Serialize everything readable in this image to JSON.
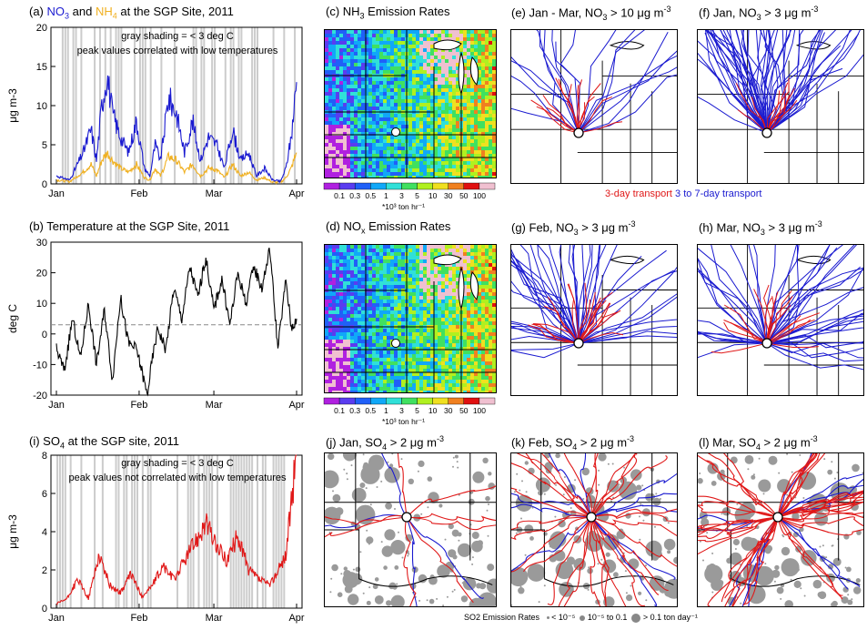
{
  "panels": {
    "a": {
      "title": "(a) NO3 and NH4 at the SGP Site, 2011",
      "title_parts": [
        "(a) ",
        "NO",
        "3",
        "and ",
        "NH",
        "4",
        " at the SGP Site, 2011"
      ],
      "note1": "gray shading = < 3 deg C",
      "note2": "peak values correlated with low temperatures"
    },
    "b": {
      "title": "(b) Temperature at the SGP Site, 2011"
    },
    "i": {
      "title": "(i) SO4 at the SGP site, 2011",
      "title_parts": [
        "(i) SO",
        "4",
        " at the SGP site, 2011"
      ],
      "note1": "gray shading = < 3 deg C",
      "note2": "peak values not correlated with low temperatures"
    },
    "c": {
      "title_parts": [
        "(c) NH",
        "3",
        " Emission Rates"
      ],
      "unit": "*10³ ton hr⁻¹"
    },
    "d": {
      "title_parts": [
        "(d) NO",
        "x",
        " Emission Rates"
      ],
      "unit": "*10³ ton hr⁻¹"
    },
    "e": {
      "title_parts": [
        "(e) Jan - Mar, NO",
        "3",
        " > 10 μg m",
        "-3"
      ]
    },
    "f": {
      "title_parts": [
        "(f) Jan, NO",
        "3",
        " > 3 μg m",
        "-3"
      ]
    },
    "g": {
      "title_parts": [
        "(g) Feb, NO",
        "3",
        " > 3 μg m",
        "-3"
      ]
    },
    "h": {
      "title_parts": [
        "(h) Mar, NO",
        "3",
        " > 3 μg m",
        "-3"
      ]
    },
    "j": {
      "title_parts": [
        "(j) Jan, SO",
        "4",
        " > 2 μg m",
        "-3"
      ]
    },
    "k": {
      "title_parts": [
        "(k) Feb, SO",
        "4",
        " > 2 μg m",
        "-3"
      ]
    },
    "l": {
      "title_parts": [
        "(l) Mar, SO",
        "4",
        " > 2 μg m",
        "-3"
      ]
    }
  },
  "transport_legend": {
    "red": "3-day transport",
    "blue": "3 to 7-day transport"
  },
  "colorbar_ticks": [
    "0.1",
    "0.3",
    "0.5",
    "1",
    "3",
    "5",
    "10",
    "30",
    "50",
    "100"
  ],
  "colorbar_colors": [
    "#b020e0",
    "#5a3cf0",
    "#2060f8",
    "#10a8f8",
    "#30e0d8",
    "#40e060",
    "#b0f020",
    "#f0e020",
    "#f08020",
    "#e01010",
    "#f0c0d0"
  ],
  "so2_legend": {
    "label": "SO2 Emission Rates",
    "items": [
      "< 10⁻⁵",
      "10⁻⁵ to 0.1",
      "> 0.1 ton day⁻¹"
    ]
  },
  "colors": {
    "no3": "#1a1ad0",
    "nh4": "#f0b020",
    "so4": "#e01818",
    "shade": "#cccccc",
    "temp": "#000000"
  },
  "chart_data": [
    {
      "type": "line",
      "title": "(a) NO3 and NH4 at the SGP Site, 2011",
      "xlabel": "",
      "ylabel": "μg m-3",
      "x_ticks": [
        "Jan",
        "Feb",
        "Mar",
        "Apr"
      ],
      "ylim": [
        0,
        20
      ],
      "y_ticks": [
        0,
        5,
        10,
        15,
        20
      ],
      "series": [
        {
          "name": "NO3",
          "x_day": [
            0,
            5,
            10,
            13,
            15,
            17,
            19,
            21,
            24,
            27,
            30,
            33,
            35,
            37,
            39,
            42,
            45,
            48,
            51,
            54,
            57,
            60,
            63,
            66,
            69,
            72,
            75,
            78,
            81,
            84,
            86,
            88,
            90
          ],
          "values": [
            1,
            0.5,
            4,
            7,
            3,
            10,
            14,
            9,
            6,
            4,
            8,
            2,
            1,
            5,
            3,
            11,
            9,
            4,
            8,
            3,
            6,
            5,
            2,
            7,
            3,
            4,
            1,
            2,
            0.5,
            0.3,
            2,
            6,
            13
          ]
        },
        {
          "name": "NH4",
          "x_day": [
            0,
            5,
            10,
            13,
            15,
            17,
            19,
            21,
            24,
            27,
            30,
            33,
            35,
            37,
            39,
            42,
            45,
            48,
            51,
            54,
            57,
            60,
            63,
            66,
            69,
            72,
            75,
            78,
            81,
            84,
            86,
            88,
            90
          ],
          "values": [
            0.5,
            0.3,
            1.5,
            2.5,
            1,
            3,
            4,
            3,
            2,
            1.5,
            2.5,
            0.8,
            0.5,
            2,
            1,
            3.5,
            3,
            1.5,
            2.5,
            1,
            2,
            1.8,
            0.8,
            2.5,
            1,
            1.5,
            0.5,
            0.8,
            0.2,
            0.2,
            0.8,
            2,
            4
          ]
        }
      ],
      "annotations": [
        "gray shading = < 3 deg C",
        "peak values correlated with low temperatures"
      ]
    },
    {
      "type": "line",
      "title": "(b) Temperature at the SGP Site, 2011",
      "xlabel": "",
      "ylabel": "deg C",
      "x_ticks": [
        "Jan",
        "Feb",
        "Mar",
        "Apr"
      ],
      "ylim": [
        -20,
        30
      ],
      "y_ticks": [
        -20,
        -10,
        0,
        10,
        20,
        30
      ],
      "reference_line": 3,
      "series": [
        {
          "name": "Temperature",
          "x_day": [
            0,
            3,
            6,
            9,
            12,
            15,
            18,
            21,
            24,
            27,
            30,
            32,
            34,
            36,
            38,
            41,
            44,
            47,
            50,
            53,
            56,
            59,
            62,
            65,
            68,
            71,
            74,
            77,
            80,
            83,
            86,
            88,
            90
          ],
          "values": [
            -5,
            -12,
            5,
            -8,
            10,
            -10,
            8,
            -15,
            12,
            -3,
            -5,
            -12,
            -20,
            -8,
            2,
            -5,
            15,
            5,
            22,
            12,
            25,
            8,
            18,
            3,
            20,
            10,
            22,
            15,
            28,
            -5,
            18,
            2,
            5
          ]
        }
      ]
    },
    {
      "type": "line",
      "title": "(i) SO4 at the SGP site, 2011",
      "xlabel": "",
      "ylabel": "μg m-3",
      "x_ticks": [
        "Jan",
        "Feb",
        "Mar",
        "Apr"
      ],
      "ylim": [
        0,
        8
      ],
      "y_ticks": [
        0,
        2,
        4,
        6,
        8
      ],
      "series": [
        {
          "name": "SO4",
          "x_day": [
            0,
            4,
            8,
            12,
            16,
            20,
            24,
            28,
            32,
            36,
            40,
            44,
            48,
            52,
            56,
            60,
            64,
            68,
            72,
            76,
            80,
            84,
            86,
            88,
            90
          ],
          "values": [
            0.2,
            0.5,
            1.5,
            0.5,
            2.8,
            1.2,
            0.8,
            1.8,
            0.6,
            1.2,
            2.2,
            1.5,
            2.5,
            3.5,
            4.5,
            3.2,
            2.5,
            3.8,
            2,
            1.5,
            1.2,
            2.2,
            2.8,
            5.5,
            8
          ]
        }
      ],
      "annotations": [
        "gray shading = < 3 deg C",
        "peak values not correlated with low temperatures"
      ]
    }
  ]
}
